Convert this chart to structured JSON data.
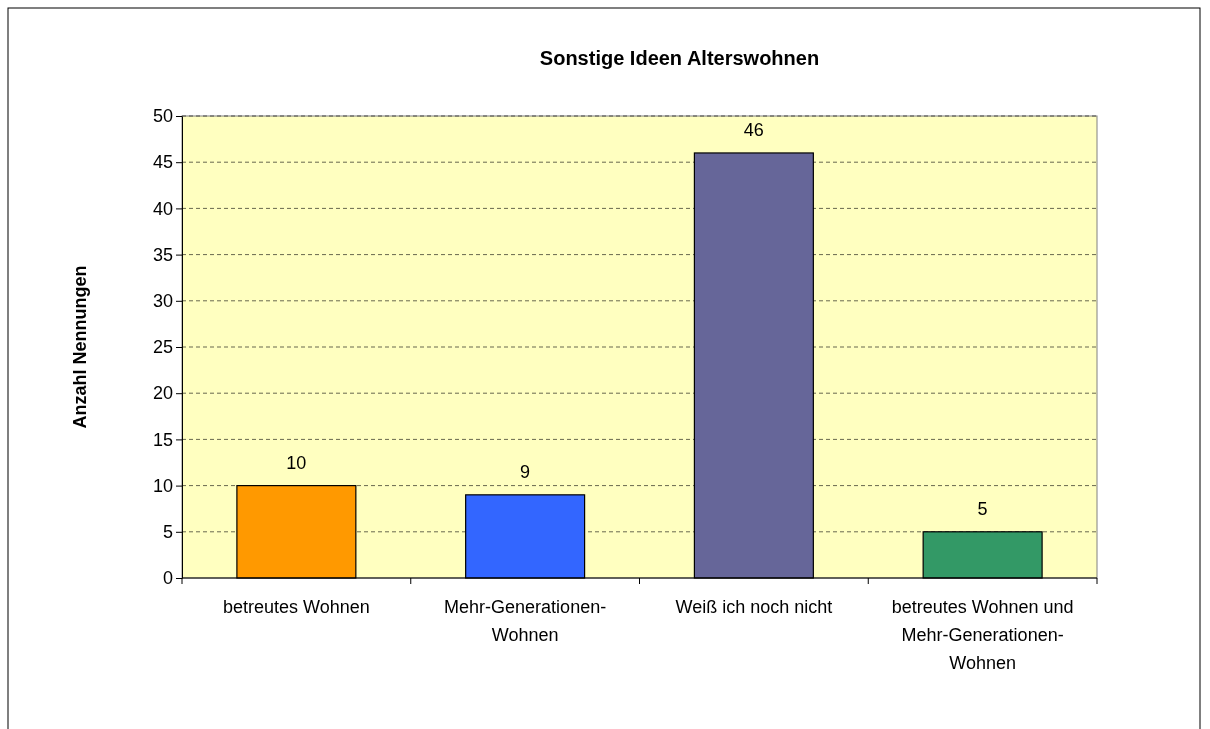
{
  "chart_data": {
    "type": "bar",
    "title": "Sonstige Ideen Alterswohnen",
    "ylabel": "Anzahl Nennungen",
    "categories": [
      "betreutes Wohnen",
      "Mehr-Generationen-Wohnen",
      "Weiß ich noch nicht",
      "betreutes Wohnen und Mehr-Generationen-Wohnen"
    ],
    "values": [
      10,
      9,
      46,
      5
    ],
    "colors": [
      "#ff9900",
      "#3366ff",
      "#666699",
      "#339966"
    ],
    "ylim": [
      0,
      50
    ],
    "yticks": [
      0,
      5,
      10,
      15,
      20,
      25,
      30,
      35,
      40,
      45,
      50
    ],
    "grid": "y",
    "data_labels": true
  }
}
